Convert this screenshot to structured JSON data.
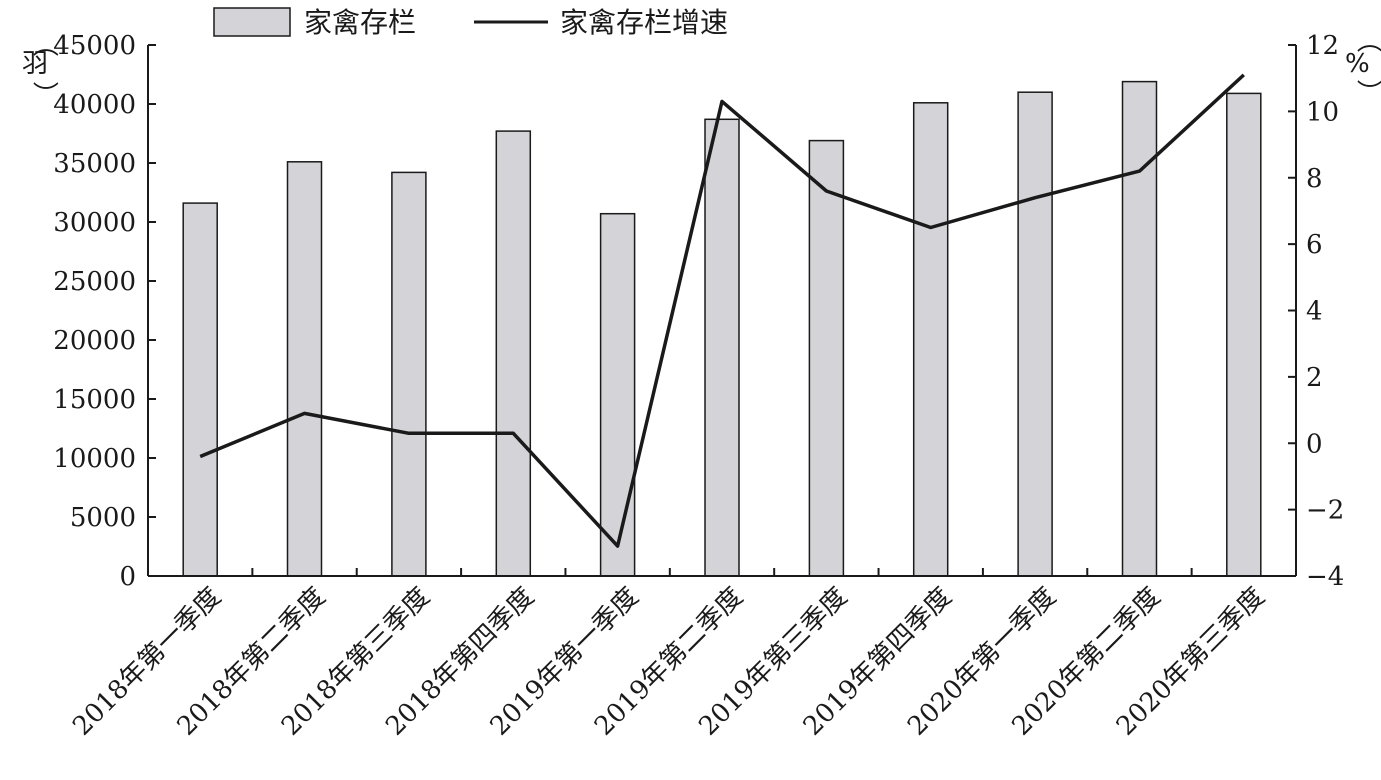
{
  "chart_data": {
    "type": "bar",
    "categories": [
      "2018年第一季度",
      "2018年第二季度",
      "2018年第三季度",
      "2018年第四季度",
      "2019年第一季度",
      "2019年第二季度",
      "2019年第三季度",
      "2019年第四季度",
      "2020年第一季度",
      "2020年第二季度",
      "2020年第三季度"
    ],
    "series": [
      {
        "name": "家禽存栏",
        "type": "bar",
        "axis": "left",
        "values": [
          31600,
          35100,
          34200,
          37700,
          30700,
          38700,
          36900,
          40100,
          41000,
          41900,
          40900
        ]
      },
      {
        "name": "家禽存栏增速",
        "type": "line",
        "axis": "right",
        "values": [
          -0.4,
          0.9,
          0.3,
          0.3,
          -3.1,
          10.3,
          7.6,
          6.5,
          7.4,
          8.2,
          11.1
        ]
      }
    ],
    "y_left": {
      "unit": "羽",
      "ylim": [
        0,
        45000
      ],
      "ticks": [
        "0",
        "5000",
        "10000",
        "15000",
        "20000",
        "25000",
        "30000",
        "35000",
        "40000",
        "45000"
      ]
    },
    "y_right": {
      "unit": "%",
      "ylim": [
        -4,
        12
      ],
      "ticks": [
        "−4",
        "−2",
        "0",
        "2",
        "4",
        "6",
        "8",
        "10",
        "12"
      ]
    },
    "legend": {
      "position": "top",
      "bar_label": "家禽存栏",
      "line_label": "家禽存栏增速"
    },
    "colors": {
      "bar_fill": "#d3d3d8",
      "line": "#1a1a1a"
    },
    "grid": false
  }
}
